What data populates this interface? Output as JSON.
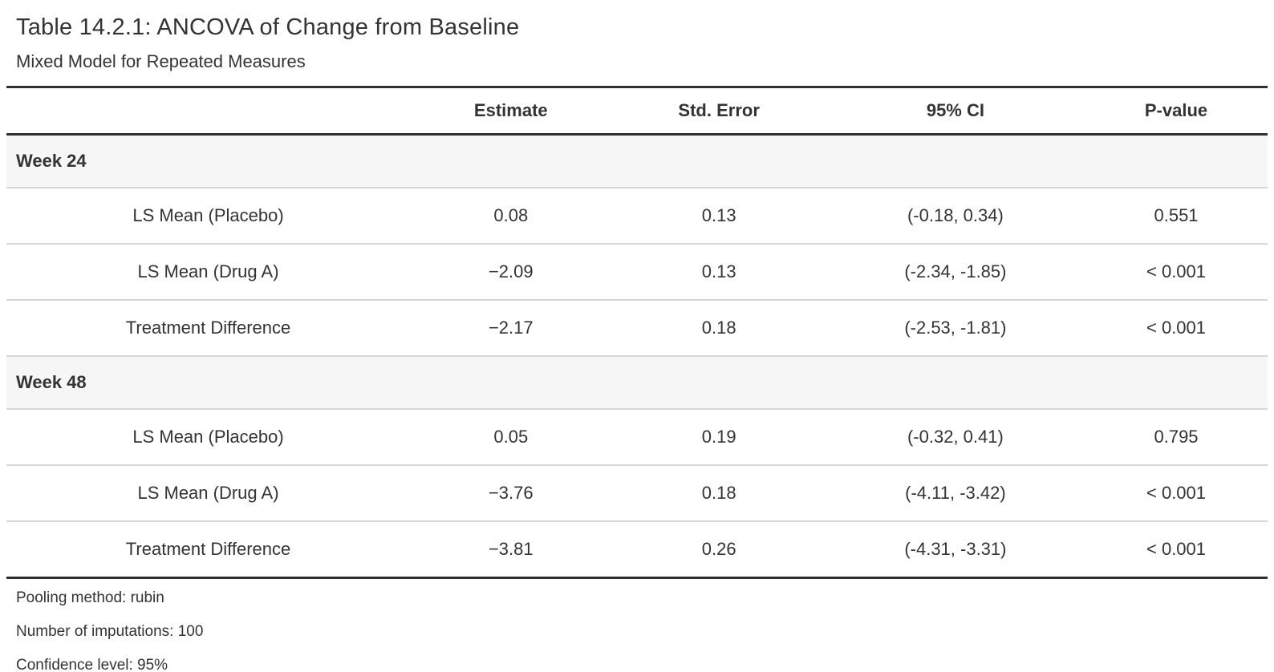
{
  "table": {
    "title": "Table 14.2.1: ANCOVA of Change from Baseline",
    "subtitle": "Mixed Model for Repeated Measures",
    "columns": [
      "",
      "Estimate",
      "Std. Error",
      "95% CI",
      "P-value"
    ],
    "groups": [
      {
        "label": "Week 24",
        "rows": [
          {
            "label": "LS Mean (Placebo)",
            "estimate": "0.08",
            "std_error": "0.13",
            "ci": "(-0.18, 0.34)",
            "p_value": "0.551"
          },
          {
            "label": "LS Mean (Drug A)",
            "estimate": "−2.09",
            "std_error": "0.13",
            "ci": "(-2.34, -1.85)",
            "p_value": "< 0.001"
          },
          {
            "label": "Treatment Difference",
            "estimate": "−2.17",
            "std_error": "0.18",
            "ci": "(-2.53, -1.81)",
            "p_value": "< 0.001"
          }
        ]
      },
      {
        "label": "Week 48",
        "rows": [
          {
            "label": "LS Mean (Placebo)",
            "estimate": "0.05",
            "std_error": "0.19",
            "ci": "(-0.32, 0.41)",
            "p_value": "0.795"
          },
          {
            "label": "LS Mean (Drug A)",
            "estimate": "−3.76",
            "std_error": "0.18",
            "ci": "(-4.11, -3.42)",
            "p_value": "< 0.001"
          },
          {
            "label": "Treatment Difference",
            "estimate": "−3.81",
            "std_error": "0.26",
            "ci": "(-4.31, -3.31)",
            "p_value": "< 0.001"
          }
        ]
      }
    ],
    "footnotes": [
      "Pooling method: rubin",
      "Number of imputations: 100",
      "Confidence level: 95%"
    ]
  },
  "colors": {
    "border_dark": "#2f2f2f",
    "row_separator": "#d6d6d6",
    "group_row_bg": "#f6f6f6",
    "text": "#333333",
    "background": "#ffffff"
  }
}
